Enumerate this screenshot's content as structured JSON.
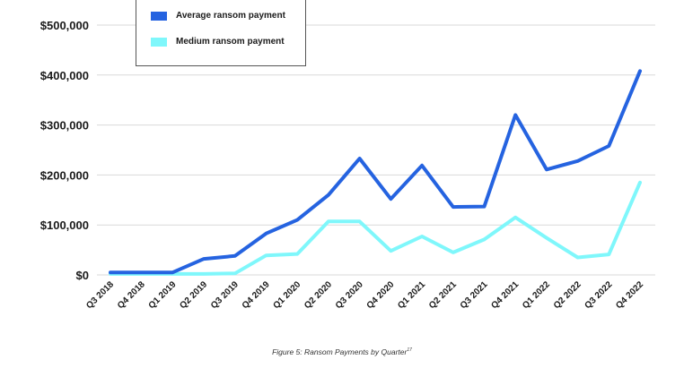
{
  "chart_data": {
    "type": "line",
    "categories": [
      "Q3 2018",
      "Q4 2018",
      "Q1 2019",
      "Q2 2019",
      "Q3 2019",
      "Q4 2019",
      "Q1 2020",
      "Q2 2020",
      "Q3 2020",
      "Q4 2020",
      "Q1 2021",
      "Q2 2021",
      "Q3 2021",
      "Q4 2021",
      "Q1 2022",
      "Q2 2022",
      "Q3 2022",
      "Q4 2022"
    ],
    "series": [
      {
        "name": "Average ransom payment",
        "color": "#2563e0",
        "values": [
          5000,
          5000,
          5000,
          32000,
          38000,
          83000,
          110000,
          160000,
          233000,
          152000,
          219000,
          136000,
          137000,
          320000,
          211000,
          228000,
          258000,
          408000
        ]
      },
      {
        "name": "Medium ransom payment",
        "color": "#7ff7fb",
        "values": [
          2000,
          2000,
          2000,
          2000,
          3000,
          39000,
          42000,
          107000,
          107000,
          48000,
          77000,
          45000,
          71000,
          115000,
          74000,
          35000,
          41000,
          185000
        ]
      }
    ],
    "ylim": [
      0,
      500000
    ],
    "yticks": [
      0,
      100000,
      200000,
      300000,
      400000,
      500000
    ],
    "ytick_labels": [
      "$0",
      "$100,000",
      "$200,000",
      "$300,000",
      "$400,000",
      "$500,000"
    ],
    "grid": true,
    "legend_position": "top-left",
    "caption": "Figure 5:  Ransom Payments by Quarter",
    "caption_note": "17"
  }
}
